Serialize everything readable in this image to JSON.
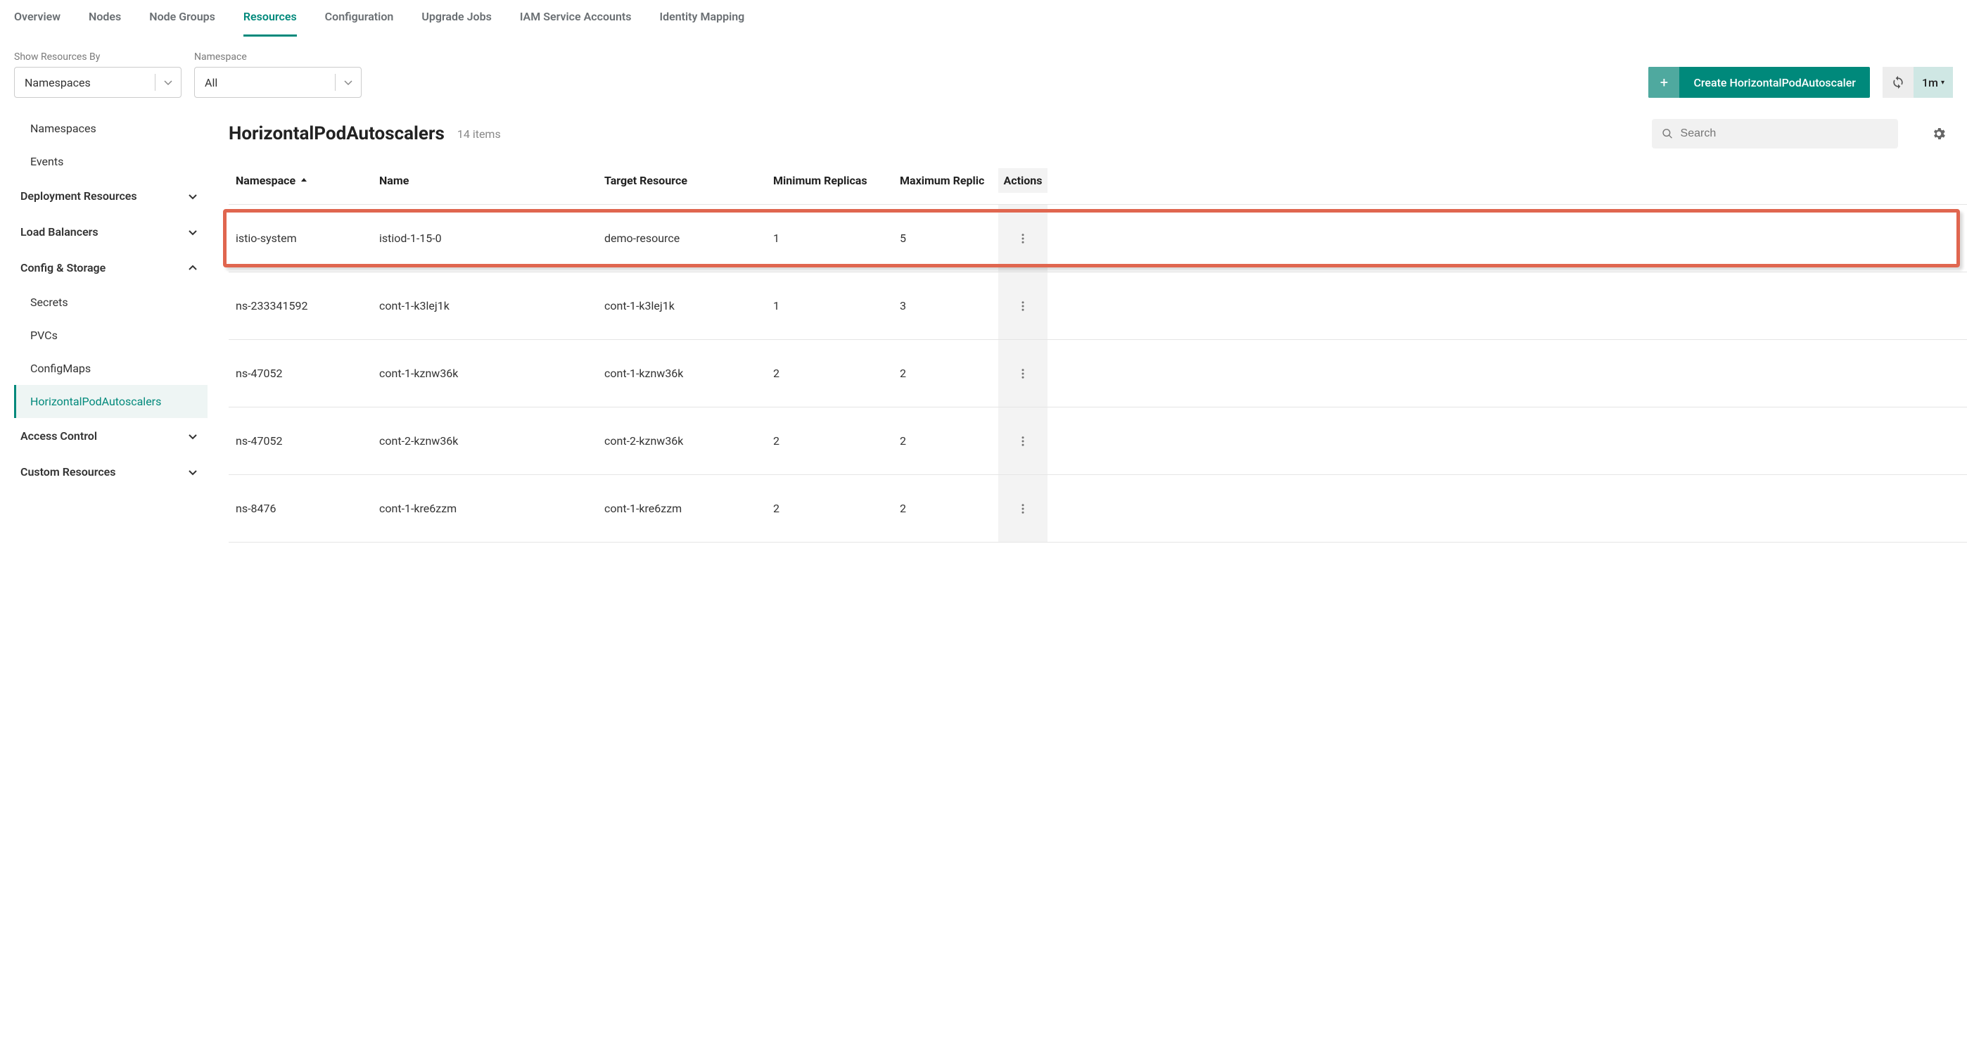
{
  "tabs": [
    {
      "label": "Overview"
    },
    {
      "label": "Nodes"
    },
    {
      "label": "Node Groups"
    },
    {
      "label": "Resources",
      "active": true
    },
    {
      "label": "Configuration"
    },
    {
      "label": "Upgrade Jobs"
    },
    {
      "label": "IAM Service Accounts"
    },
    {
      "label": "Identity Mapping"
    }
  ],
  "filters": {
    "show_by_label": "Show Resources By",
    "show_by_value": "Namespaces",
    "namespace_label": "Namespace",
    "namespace_value": "All"
  },
  "create_button": "Create HorizontalPodAutoscaler",
  "refresh_interval": "1m",
  "sidebar": {
    "top": [
      {
        "label": "Namespaces"
      },
      {
        "label": "Events"
      }
    ],
    "groups": [
      {
        "label": "Deployment Resources",
        "expanded": false,
        "items": []
      },
      {
        "label": "Load Balancers",
        "expanded": false,
        "items": []
      },
      {
        "label": "Config & Storage",
        "expanded": true,
        "items": [
          {
            "label": "Secrets"
          },
          {
            "label": "PVCs"
          },
          {
            "label": "ConfigMaps"
          },
          {
            "label": "HorizontalPodAutoscalers",
            "active": true
          }
        ]
      },
      {
        "label": "Access Control",
        "expanded": false,
        "items": []
      },
      {
        "label": "Custom Resources",
        "expanded": false,
        "items": []
      }
    ]
  },
  "page": {
    "title": "HorizontalPodAutoscalers",
    "count": "14 items",
    "search_placeholder": "Search"
  },
  "columns": {
    "namespace": "Namespace",
    "name": "Name",
    "target": "Target Resource",
    "min": "Minimum Replicas",
    "max": "Maximum Replic",
    "actions": "Actions"
  },
  "rows": [
    {
      "ns": "istio-system",
      "name": "istiod-1-15-0",
      "target": "demo-resource",
      "min": "1",
      "max": "5",
      "highlight": true
    },
    {
      "ns": "ns-233341592",
      "name": "cont-1-k3lej1k",
      "target": "cont-1-k3lej1k",
      "min": "1",
      "max": "3"
    },
    {
      "ns": "ns-47052",
      "name": "cont-1-kznw36k",
      "target": "cont-1-kznw36k",
      "min": "2",
      "max": "2"
    },
    {
      "ns": "ns-47052",
      "name": "cont-2-kznw36k",
      "target": "cont-2-kznw36k",
      "min": "2",
      "max": "2"
    },
    {
      "ns": "ns-8476",
      "name": "cont-1-kre6zzm",
      "target": "cont-1-kre6zzm",
      "min": "2",
      "max": "2"
    }
  ]
}
